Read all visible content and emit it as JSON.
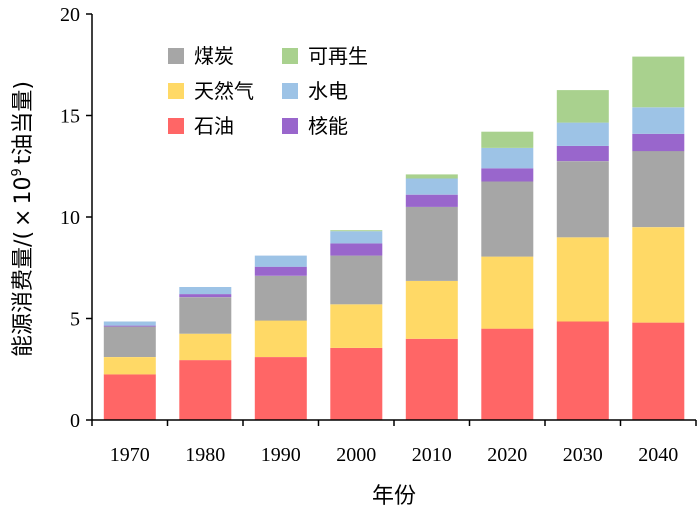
{
  "chart_data": {
    "type": "stacked-bar",
    "categories": [
      "1970",
      "1980",
      "1990",
      "2000",
      "2010",
      "2020",
      "2030",
      "2040"
    ],
    "series": [
      {
        "name": "石油",
        "color": "#FF6666",
        "values": [
          2.25,
          2.95,
          3.1,
          3.55,
          4.0,
          4.5,
          4.85,
          4.8
        ]
      },
      {
        "name": "天然气",
        "color": "#FFD966",
        "values": [
          0.85,
          1.3,
          1.8,
          2.15,
          2.85,
          3.55,
          4.15,
          4.7
        ]
      },
      {
        "name": "煤炭",
        "color": "#A6A6A6",
        "values": [
          1.5,
          1.8,
          2.2,
          2.4,
          3.65,
          3.7,
          3.75,
          3.75
        ]
      },
      {
        "name": "核能",
        "color": "#9966CC",
        "values": [
          0.05,
          0.15,
          0.45,
          0.6,
          0.6,
          0.65,
          0.75,
          0.85
        ]
      },
      {
        "name": "水电",
        "color": "#9DC3E6",
        "values": [
          0.2,
          0.35,
          0.55,
          0.6,
          0.8,
          1.0,
          1.15,
          1.3
        ]
      },
      {
        "name": "可再生",
        "color": "#A9D18E",
        "values": [
          0.0,
          0.0,
          0.0,
          0.05,
          0.2,
          0.8,
          1.6,
          2.5
        ]
      }
    ],
    "legend": [
      {
        "name": "煤炭",
        "color": "#A6A6A6"
      },
      {
        "name": "可再生",
        "color": "#A9D18E"
      },
      {
        "name": "天然气",
        "color": "#FFD966"
      },
      {
        "name": "水电",
        "color": "#9DC3E6"
      },
      {
        "name": "石油",
        "color": "#FF6666"
      },
      {
        "name": "核能",
        "color": "#9966CC"
      }
    ],
    "legend_position": "top-left",
    "xlabel": "年份",
    "ylabel_main": "能源消费量/(",
    "ylabel_times": "×",
    "ylabel_base": "10",
    "ylabel_exp": "9",
    "ylabel_unit": "t油当量)",
    "ylim": [
      0,
      20
    ],
    "yticks": [
      "0",
      "5",
      "10",
      "15",
      "20"
    ],
    "grid": false
  }
}
